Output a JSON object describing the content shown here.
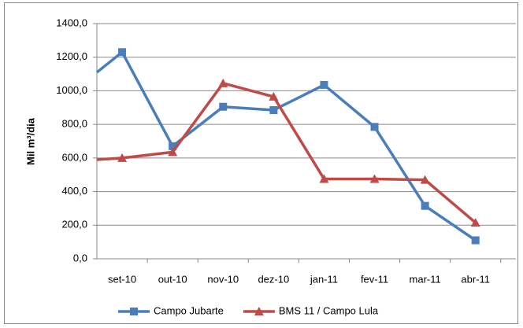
{
  "chart_data": {
    "type": "line",
    "categories": [
      null,
      "set-10",
      "out-10",
      "nov-10",
      "dez-10",
      "jan-11",
      "fev-11",
      "mar-11",
      "abr-11"
    ],
    "series": [
      {
        "name": "Campo Jubarte",
        "color": "#4a7ebb",
        "marker": "square",
        "values": [
          1110,
          1230,
          670,
          905,
          885,
          1035,
          785,
          315,
          110
        ]
      },
      {
        "name": "BMS 11 / Campo Lula",
        "color": "#be4b48",
        "marker": "triangle",
        "values": [
          590,
          600,
          635,
          1045,
          965,
          475,
          475,
          470,
          215
        ]
      }
    ],
    "y_label": "Mil m³/dia",
    "ylim": [
      0,
      1400
    ],
    "yticks": [
      {
        "value": 0,
        "label": "0,0"
      },
      {
        "value": 200,
        "label": "200,0"
      },
      {
        "value": 400,
        "label": "400,0"
      },
      {
        "value": 600,
        "label": "600,0"
      },
      {
        "value": 800,
        "label": "800,0"
      },
      {
        "value": 1000,
        "label": "1000,0"
      },
      {
        "value": 1200,
        "label": "1200,0"
      },
      {
        "value": 1400,
        "label": "1400,0"
      }
    ],
    "grid": true,
    "legend": "bottom"
  }
}
